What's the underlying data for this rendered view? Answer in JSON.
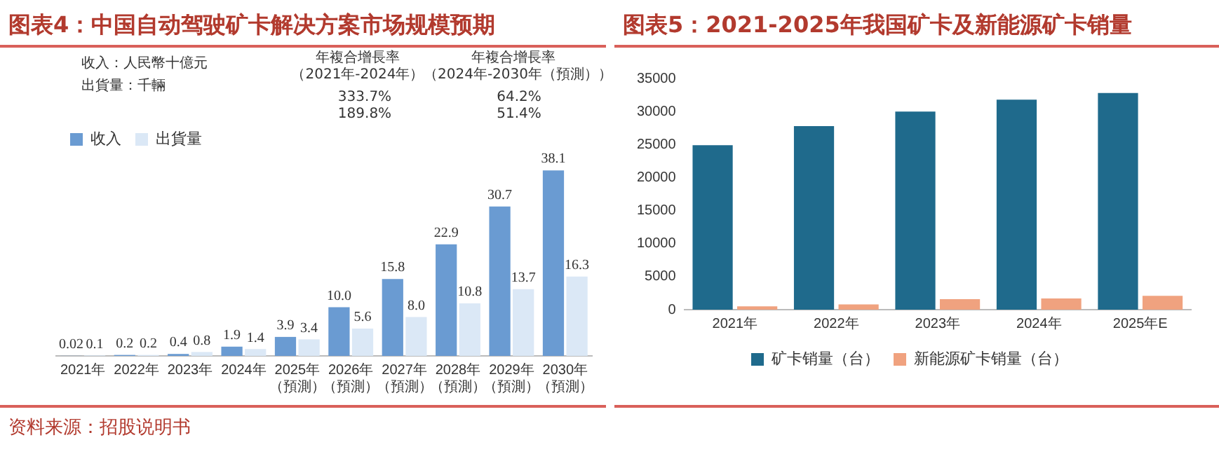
{
  "chart_data": [
    {
      "type": "bar",
      "title": "图表4：中国自动驾驶矿卡解决方案市场规模预期",
      "categories": [
        "2021年",
        "2022年",
        "2023年",
        "2024年",
        "2025年（預測）",
        "2026年（預測）",
        "2027年（預測）",
        "2028年（預測）",
        "2029年（預測）",
        "2030年（預測）"
      ],
      "series": [
        {
          "name": "收入",
          "color": "#6a9bd2",
          "values": [
            0.02,
            0.2,
            0.4,
            1.9,
            3.9,
            10.0,
            15.8,
            22.9,
            30.7,
            38.1
          ],
          "value_labels": [
            "0.02",
            "0.2",
            "0.4",
            "1.9",
            "3.9",
            "10.0",
            "15.8",
            "22.9",
            "30.7",
            "38.1"
          ]
        },
        {
          "name": "出貨量",
          "color": "#dbe8f6",
          "values": [
            0.1,
            0.2,
            0.8,
            1.4,
            3.4,
            5.6,
            8.0,
            10.8,
            13.7,
            16.3
          ],
          "value_labels": [
            "0.1",
            "0.2",
            "0.8",
            "1.4",
            "3.4",
            "5.6",
            "8.0",
            "10.8",
            "13.7",
            "16.3"
          ]
        }
      ],
      "legend": "top left",
      "tick_labels": "x",
      "annotations": [
        "收入：人民幣十億元",
        "出貨量：千輛",
        "年複合增長率（2021年-2024年）",
        "年複合增長率（2024年-2030年（預測））",
        "333.7%",
        "64.2%",
        "189.8%",
        "51.4%",
        "资料来源：招股说明书"
      ]
    },
    {
      "type": "bar",
      "title": "图表5：2021-2025年我国矿卡及新能源矿卡销量",
      "categories": [
        "2021年",
        "2022年",
        "2023年",
        "2024年",
        "2025年E"
      ],
      "series": [
        {
          "name": "矿卡销量（台）",
          "color": "#1f6a8c",
          "values": [
            24900,
            27800,
            30000,
            31800,
            32800
          ]
        },
        {
          "name": "新能源矿卡销量（台）",
          "color": "#f0a27f",
          "values": [
            500,
            800,
            1600,
            1700,
            2100
          ]
        }
      ],
      "ylim": [
        0,
        35000
      ],
      "yticks": [
        0,
        5000,
        10000,
        15000,
        20000,
        25000,
        30000,
        35000
      ],
      "legend": "bottom"
    }
  ]
}
